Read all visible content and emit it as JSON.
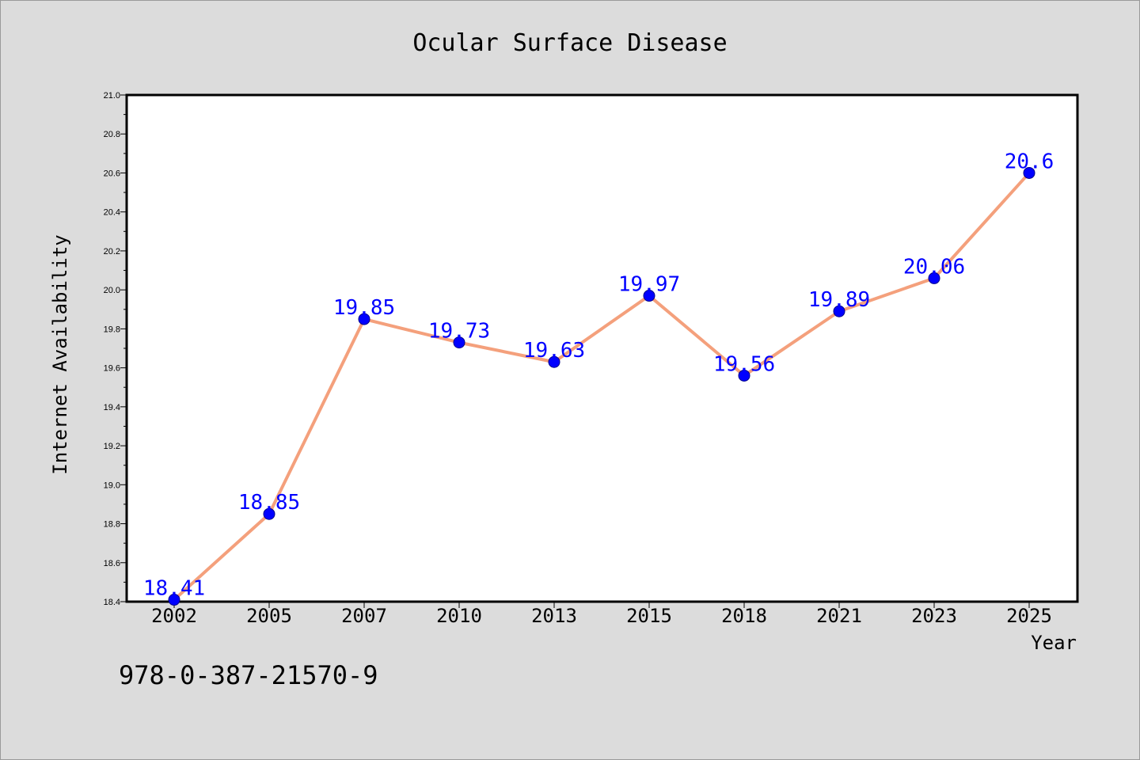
{
  "chart_data": {
    "type": "line",
    "title": "Ocular Surface Disease",
    "xlabel": "Year",
    "ylabel": "Internet Availability",
    "categories": [
      "2002",
      "2005",
      "2007",
      "2010",
      "2013",
      "2015",
      "2018",
      "2021",
      "2023",
      "2025"
    ],
    "series": [
      {
        "values": [
          18.41,
          18.85,
          19.85,
          19.73,
          19.63,
          19.97,
          19.56,
          19.89,
          20.06,
          20.6
        ],
        "labels": [
          "18.41",
          "18.85",
          "19.85",
          "19.73",
          "19.63",
          "19.97",
          "19.56",
          "19.89",
          "20.06",
          "20.6"
        ]
      }
    ],
    "ylim": [
      18.4,
      21.0
    ],
    "yticks": [
      "18.4",
      "18.6",
      "18.8",
      "19.0",
      "19.2",
      "19.4",
      "19.6",
      "19.8",
      "20.0",
      "20.2",
      "20.4",
      "20.6",
      "20.8",
      "21.0"
    ],
    "grid": false,
    "colors": {
      "line": "#f4a07c",
      "marker": "#0000ff",
      "label": "#0000ff",
      "background": "#dcdcdc",
      "plot_background": "#ffffff"
    }
  },
  "footer": {
    "text": "978-0-387-21570-9"
  }
}
